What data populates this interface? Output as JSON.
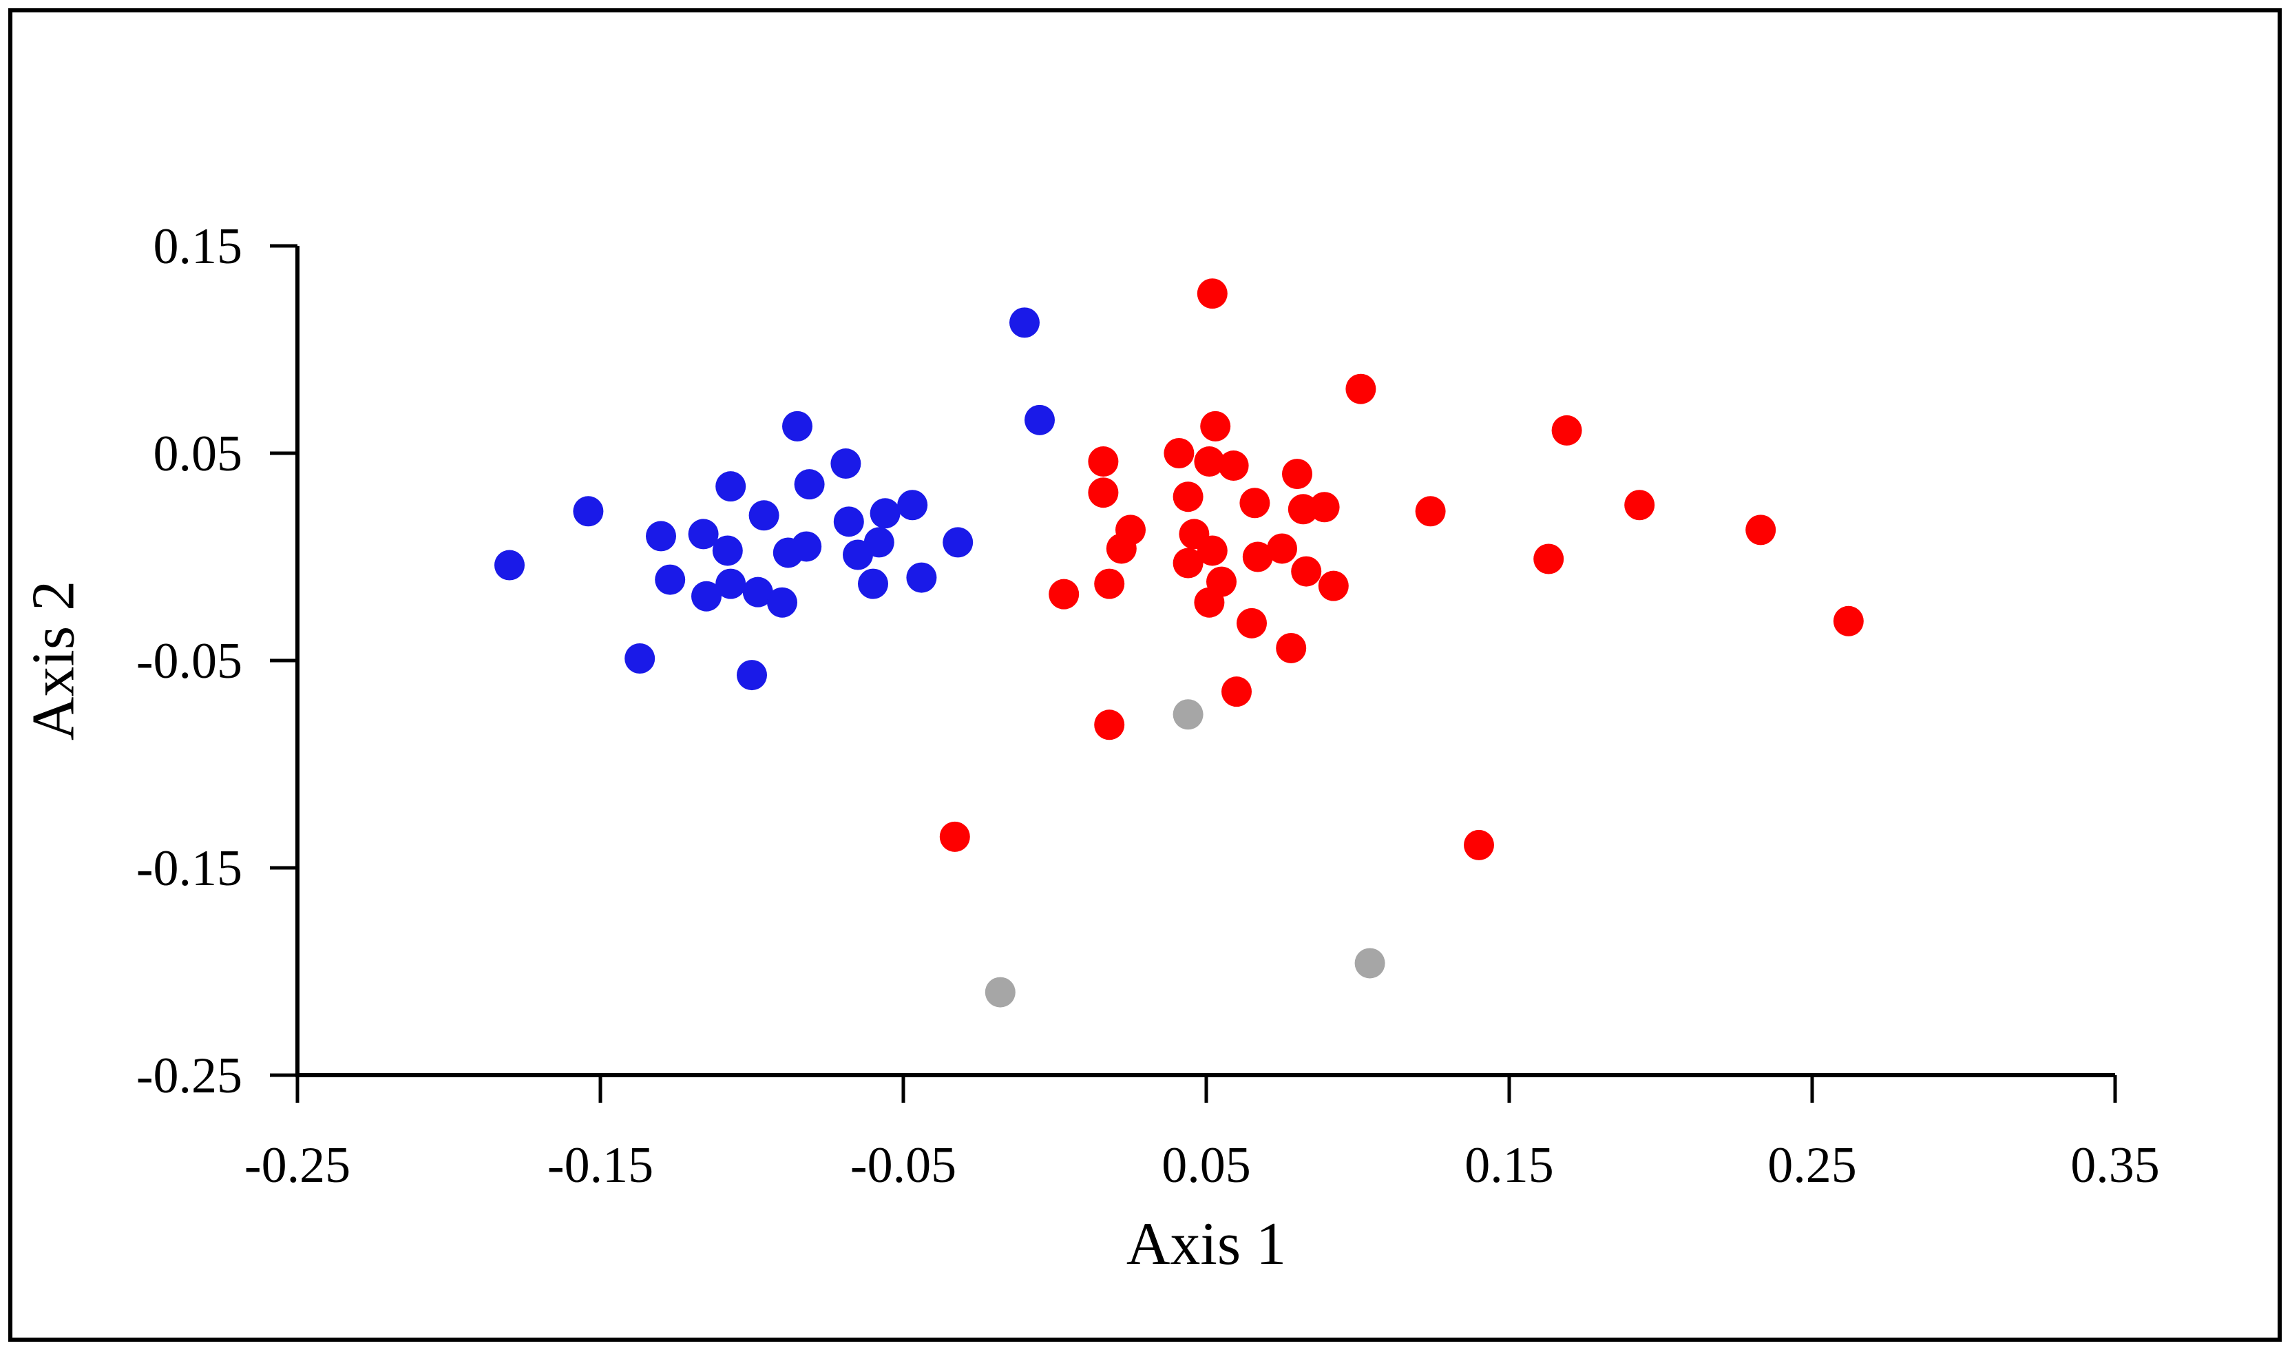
{
  "chart_data": {
    "type": "scatter",
    "title": "",
    "xlabel": "Axis 1",
    "ylabel": "Axis 2",
    "xlim": [
      -0.25,
      0.35
    ],
    "ylim": [
      -0.25,
      0.15
    ],
    "grid": false,
    "legend": "none",
    "x_ticks": [
      {
        "v": -0.25,
        "label": "-0.25"
      },
      {
        "v": -0.15,
        "label": "-0.15"
      },
      {
        "v": -0.05,
        "label": "-0.05"
      },
      {
        "v": 0.05,
        "label": "0.05"
      },
      {
        "v": 0.15,
        "label": "0.15"
      },
      {
        "v": 0.25,
        "label": "0.25"
      },
      {
        "v": 0.35,
        "label": "0.35"
      }
    ],
    "y_ticks": [
      {
        "v": 0.15,
        "label": "0.15"
      },
      {
        "v": 0.05,
        "label": "0.05"
      },
      {
        "v": -0.05,
        "label": "-0.05"
      },
      {
        "v": -0.15,
        "label": "-0.15"
      },
      {
        "v": -0.25,
        "label": "-0.25"
      }
    ],
    "series": [
      {
        "name": "blue-group",
        "color": "#1a1ae8",
        "points": [
          [
            -0.18,
            -0.004
          ],
          [
            -0.154,
            0.022
          ],
          [
            -0.137,
            -0.049
          ],
          [
            -0.13,
            0.01
          ],
          [
            -0.127,
            -0.011
          ],
          [
            -0.116,
            0.011
          ],
          [
            -0.115,
            -0.019
          ],
          [
            -0.108,
            0.003
          ],
          [
            -0.107,
            0.034
          ],
          [
            -0.107,
            -0.013
          ],
          [
            -0.1,
            -0.057
          ],
          [
            -0.098,
            -0.017
          ],
          [
            -0.096,
            0.02
          ],
          [
            -0.09,
            -0.022
          ],
          [
            -0.088,
            0.002
          ],
          [
            -0.085,
            0.063
          ],
          [
            -0.082,
            0.005
          ],
          [
            -0.081,
            0.035
          ],
          [
            -0.069,
            0.045
          ],
          [
            -0.068,
            0.017
          ],
          [
            -0.065,
            0.001
          ],
          [
            -0.06,
            -0.013
          ],
          [
            -0.058,
            0.007
          ],
          [
            -0.056,
            0.021
          ],
          [
            -0.047,
            0.025
          ],
          [
            -0.044,
            -0.01
          ],
          [
            -0.032,
            0.007
          ],
          [
            -0.01,
            0.113
          ],
          [
            -0.005,
            0.066
          ]
        ]
      },
      {
        "name": "red-group",
        "color": "#fe0000",
        "points": [
          [
            -0.033,
            -0.135
          ],
          [
            0.003,
            -0.018
          ],
          [
            0.016,
            0.046
          ],
          [
            0.016,
            0.031
          ],
          [
            0.018,
            -0.013
          ],
          [
            0.018,
            -0.081
          ],
          [
            0.022,
            0.004
          ],
          [
            0.025,
            0.013
          ],
          [
            0.041,
            0.05
          ],
          [
            0.044,
            0.029
          ],
          [
            0.044,
            -0.003
          ],
          [
            0.046,
            0.011
          ],
          [
            0.051,
            0.046
          ],
          [
            0.051,
            -0.022
          ],
          [
            0.052,
            0.127
          ],
          [
            0.052,
            0.003
          ],
          [
            0.053,
            0.063
          ],
          [
            0.055,
            -0.012
          ],
          [
            0.059,
            0.044
          ],
          [
            0.06,
            -0.065
          ],
          [
            0.065,
            -0.032
          ],
          [
            0.066,
            0.026
          ],
          [
            0.067,
            0.0
          ],
          [
            0.075,
            0.004
          ],
          [
            0.078,
            -0.044
          ],
          [
            0.08,
            0.04
          ],
          [
            0.082,
            0.023
          ],
          [
            0.083,
            -0.007
          ],
          [
            0.089,
            0.024
          ],
          [
            0.092,
            -0.014
          ],
          [
            0.101,
            0.081
          ],
          [
            0.124,
            0.022
          ],
          [
            0.14,
            -0.139
          ],
          [
            0.163,
            -0.001
          ],
          [
            0.169,
            0.061
          ],
          [
            0.193,
            0.025
          ],
          [
            0.233,
            0.013
          ],
          [
            0.262,
            -0.031
          ]
        ]
      },
      {
        "name": "gray-group",
        "color": "#a6a6a6",
        "points": [
          [
            -0.018,
            -0.21
          ],
          [
            0.044,
            -0.076
          ],
          [
            0.104,
            -0.196
          ]
        ]
      }
    ]
  }
}
